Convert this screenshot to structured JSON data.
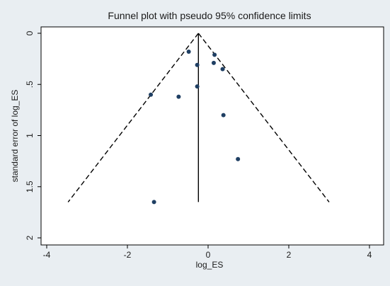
{
  "chart_data": {
    "type": "scatter",
    "title": "Funnel plot with pseudo 95% confidence limits",
    "xlabel": "log_ES",
    "ylabel": "standard error of log_ES",
    "xlim": [
      -4,
      4
    ],
    "ylim": [
      0,
      2
    ],
    "y_reversed": true,
    "x_ticks": [
      -4,
      -2,
      0,
      2,
      4
    ],
    "x_tick_labels": [
      "-4",
      "-2",
      "0",
      "2",
      "4"
    ],
    "y_ticks": [
      0,
      0.5,
      1,
      1.5,
      2
    ],
    "y_tick_labels": [
      "0",
      ".5",
      "1",
      "1.5",
      "2"
    ],
    "grid": false,
    "pooled_estimate": -0.24,
    "confidence_limits": {
      "apex": [
        -0.24,
        0
      ],
      "lower_left": [
        -3.47,
        1.65
      ],
      "lower_right": [
        3.0,
        1.65
      ]
    },
    "points": [
      {
        "x": -0.48,
        "y": 0.18
      },
      {
        "x": 0.16,
        "y": 0.21
      },
      {
        "x": 0.14,
        "y": 0.29
      },
      {
        "x": -0.27,
        "y": 0.31
      },
      {
        "x": 0.36,
        "y": 0.35
      },
      {
        "x": -0.27,
        "y": 0.52
      },
      {
        "x": -1.42,
        "y": 0.6
      },
      {
        "x": -0.73,
        "y": 0.62
      },
      {
        "x": 0.38,
        "y": 0.8
      },
      {
        "x": 0.74,
        "y": 1.23
      },
      {
        "x": -1.34,
        "y": 1.65
      }
    ],
    "colors": {
      "points": "#1f3f63",
      "lines": "#000000",
      "plot_background": "#ffffff",
      "outer_background": "#e9eef2"
    }
  }
}
